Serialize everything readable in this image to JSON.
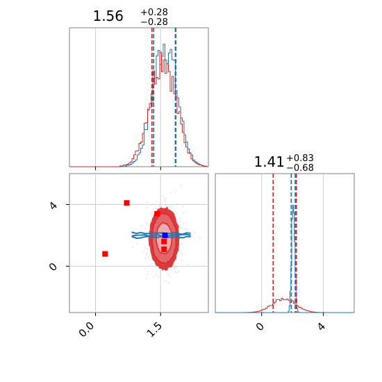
{
  "chart_data": {
    "type": "corner",
    "panels": [
      {
        "id": "hist-param-1",
        "type": "histogram",
        "xlim": [
          -0.6,
          2.6
        ],
        "grid": true,
        "title": {
          "value": "1.56",
          "plus": "+0.28",
          "minus": "−0.28"
        },
        "series": [
          {
            "color": "#1f77b4",
            "peak_x": 1.6,
            "sigma": 0.28
          },
          {
            "color": "#d62728",
            "peak_x": 1.55,
            "sigma": 0.3
          }
        ],
        "vlines": [
          {
            "color": "#d62728",
            "values": [
              1.3,
              1.85
            ]
          },
          {
            "color": "#1f77b4",
            "values": [
              1.34,
              1.84
            ]
          }
        ]
      },
      {
        "id": "scatter-2d",
        "type": "contour",
        "xlim": [
          -0.6,
          2.6
        ],
        "ylim": [
          -3.0,
          6.0
        ],
        "xticks": [
          "0.0",
          "1.5"
        ],
        "yticks": [
          "0",
          "4"
        ],
        "grid": true,
        "markers_red": [
          [
            0.22,
            0.8
          ],
          [
            0.72,
            4.1
          ],
          [
            1.42,
            3.4
          ],
          [
            1.58,
            1.6
          ],
          [
            1.58,
            1.1
          ]
        ],
        "marker_blue": [
          1.6,
          2.0
        ],
        "contours_red": {
          "center": [
            1.58,
            1.8
          ],
          "levels_rx": [
            0.18,
            0.28,
            0.34
          ],
          "levels_ry": [
            1.0,
            1.6,
            2.0
          ]
        },
        "band_blue": {
          "x": [
            0.85,
            2.25
          ],
          "y": 2.0
        }
      },
      {
        "id": "hist-param-2",
        "type": "histogram",
        "xlim": [
          -3.0,
          6.0
        ],
        "xticks": [
          "0",
          "4"
        ],
        "grid": true,
        "title": {
          "value": "1.41",
          "plus": "+0.83",
          "minus": "−0.68"
        },
        "series": [
          {
            "color": "#1f77b4",
            "peak_x": 2.05,
            "sigma": 0.1
          },
          {
            "color": "#d62728",
            "peak_x": 1.45,
            "sigma": 0.75
          }
        ],
        "vlines": [
          {
            "color": "#d62728",
            "values": [
              0.75,
              2.25
            ]
          },
          {
            "color": "#1f77b4",
            "values": [
              1.92,
              2.18
            ]
          }
        ]
      }
    ]
  }
}
